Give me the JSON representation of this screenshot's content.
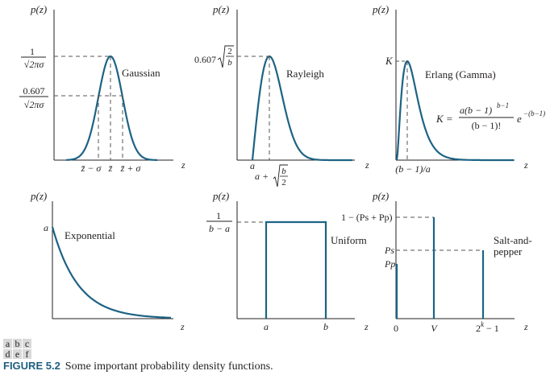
{
  "figure": {
    "label": "FIGURE 5.2",
    "caption": "Some important probability density functions.",
    "panel_letters": [
      "a",
      "b",
      "c",
      "d",
      "e",
      "f"
    ]
  },
  "colors": {
    "curve": "#1d6384",
    "axis": "#231f20",
    "guide": "#555555",
    "tile": "#d9d9d9"
  },
  "panels": {
    "gaussian": {
      "ylabel": "p(z)",
      "xlabel": "z",
      "name": "Gaussian",
      "peak_num": "1",
      "peak_den": "√2πσ",
      "mid_num": "0.607",
      "mid_den": "√2πσ",
      "tick_left": "z̄ − σ",
      "tick_mid": "z̄",
      "tick_right": "z̄ + σ"
    },
    "rayleigh": {
      "ylabel": "p(z)",
      "xlabel": "z",
      "name": "Rayleigh",
      "peak_coef": "0.607",
      "peak_num": "2",
      "peak_den": "b",
      "tick_a": "a",
      "tick_peak_prefix": "a +",
      "tick_peak_num": "b",
      "tick_peak_den": "2"
    },
    "erlang": {
      "ylabel": "p(z)",
      "xlabel": "z",
      "name": "Erlang (Gamma)",
      "peak": "K",
      "tick_peak": "(b − 1)/a",
      "eq_lhs": "K =",
      "eq_num": "a(b − 1)",
      "eq_num_exp": "b−1",
      "eq_den": "(b − 1)!",
      "eq_exp_base": "e",
      "eq_exp": "−(b−1)"
    },
    "exponential": {
      "ylabel": "p(z)",
      "xlabel": "z",
      "name": "Exponential",
      "peak": "a"
    },
    "uniform": {
      "ylabel": "p(z)",
      "xlabel": "z",
      "name": "Uniform",
      "level_num": "1",
      "level_den": "b − a",
      "tick_a": "a",
      "tick_b": "b"
    },
    "saltpepper": {
      "ylabel": "p(z)",
      "xlabel": "z",
      "name_line1": "Salt-and-",
      "name_line2": "pepper",
      "level_top": "1 − (Ps + Pp)",
      "level_s": "Ps",
      "level_p": "Pp",
      "tick_0": "0",
      "tick_v": "V",
      "tick_max_base": "2",
      "tick_max_exp": "k",
      "tick_max_rest": " − 1"
    }
  }
}
